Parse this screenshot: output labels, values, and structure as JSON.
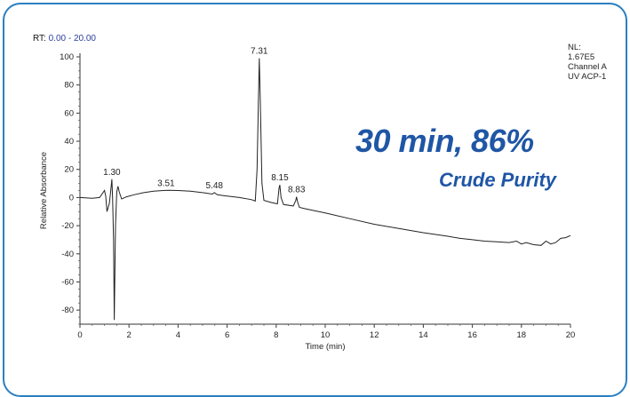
{
  "header": {
    "rt_prefix": "RT:",
    "rt_range": "0.00 - 20.00"
  },
  "info": {
    "nl_label": "NL:",
    "nl_value": "1.67E5",
    "channel": "Channel A",
    "detector": "UV ACP-1"
  },
  "annotation": {
    "headline": "30 min, 86%",
    "subline": "Crude Purity"
  },
  "colors": {
    "accent": "#1f56a5",
    "frame": "#2a7fc1",
    "trace": "#222222"
  },
  "chart_data": {
    "type": "line",
    "xlabel": "Time (min)",
    "ylabel": "Relative Absorbance",
    "xlim": [
      0,
      20
    ],
    "ylim": [
      -90,
      100
    ],
    "xticks": [
      0,
      2,
      4,
      6,
      8,
      10,
      12,
      14,
      16,
      18,
      20
    ],
    "yticks": [
      100,
      80,
      60,
      40,
      20,
      0,
      -20,
      -40,
      -60,
      -80
    ],
    "grid": false,
    "series": [
      {
        "x": [
          0.0,
          0.5,
          0.8,
          1.0,
          1.05,
          1.1,
          1.2,
          1.25,
          1.3,
          1.33,
          1.37,
          1.4,
          1.45,
          1.5,
          1.55,
          1.6,
          1.7,
          1.9,
          2.2,
          2.6,
          3.0,
          3.4,
          3.6,
          4.0,
          4.5,
          5.0,
          5.4,
          5.48,
          5.6,
          6.0,
          6.5,
          7.0,
          7.15,
          7.22,
          7.27,
          7.31,
          7.35,
          7.42,
          7.5,
          7.8,
          8.05,
          8.12,
          8.15,
          8.2,
          8.3,
          8.7,
          8.8,
          8.83,
          8.88,
          8.95,
          9.2,
          10.0,
          11.0,
          12.0,
          13.0,
          14.0,
          15.0,
          15.5,
          16.0,
          16.5,
          17.0,
          17.5,
          17.8,
          18.0,
          18.2,
          18.5,
          18.8,
          19.0,
          19.2,
          19.4,
          19.6,
          19.8,
          20.0
        ],
        "y": [
          0.0,
          -0.5,
          0.0,
          5.0,
          1.0,
          -10.0,
          -4.0,
          4.0,
          13.0,
          0.0,
          -30.0,
          -87.0,
          -20.0,
          4.0,
          8.0,
          4.0,
          -1.0,
          0.5,
          2.0,
          3.5,
          4.5,
          5.0,
          5.2,
          5.0,
          4.5,
          3.5,
          2.5,
          3.5,
          2.0,
          1.0,
          0.0,
          -1.5,
          -2.5,
          20.0,
          65.0,
          99.0,
          70.0,
          10.0,
          -2.0,
          -3.5,
          -4.5,
          7.0,
          9.0,
          0.0,
          -5.0,
          -6.0,
          -2.0,
          0.5,
          -3.5,
          -7.0,
          -8.0,
          -11.0,
          -15.0,
          -19.0,
          -22.0,
          -25.0,
          -27.5,
          -29.0,
          -30.0,
          -31.0,
          -31.5,
          -32.0,
          -31.0,
          -33.0,
          -32.0,
          -33.5,
          -34.0,
          -31.0,
          -33.0,
          -32.0,
          -29.0,
          -28.5,
          -27.0
        ]
      }
    ],
    "peaks": [
      {
        "label": "1.30",
        "x": 1.3,
        "y": 13.0
      },
      {
        "label": "3.51",
        "x": 3.51,
        "y": 5.0
      },
      {
        "label": "5.48",
        "x": 5.48,
        "y": 3.5
      },
      {
        "label": "7.31",
        "x": 7.31,
        "y": 99.0
      },
      {
        "label": "8.15",
        "x": 8.15,
        "y": 9.0
      },
      {
        "label": "8.83",
        "x": 8.83,
        "y": 0.5
      }
    ]
  }
}
